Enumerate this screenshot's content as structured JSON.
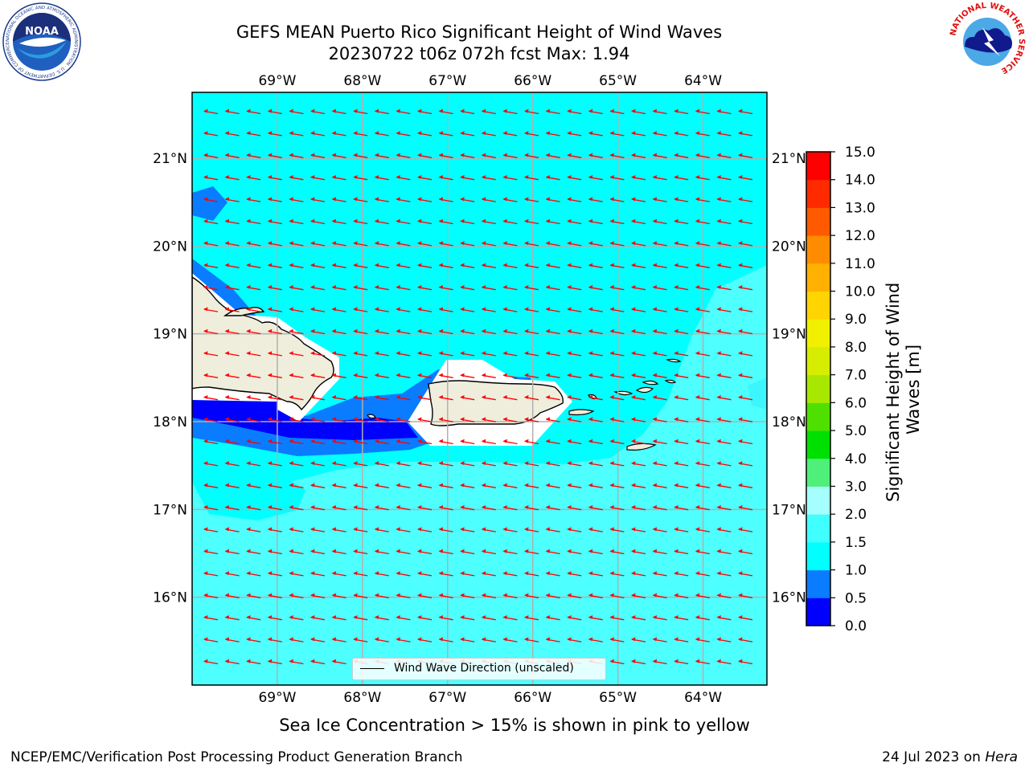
{
  "title": {
    "line1": "GEFS MEAN Puerto Rico Significant Height of Wind Waves",
    "line2": "20230722 t06z 072h fcst   Max: 1.94"
  },
  "axes": {
    "lon_labels": [
      "69°W",
      "68°W",
      "67°W",
      "66°W",
      "65°W",
      "64°W"
    ],
    "lon_values": [
      -69,
      -68,
      -67,
      -66,
      -65,
      -64
    ],
    "lat_labels": [
      "21°N",
      "20°N",
      "19°N",
      "18°N",
      "17°N",
      "16°N"
    ],
    "lat_values": [
      21,
      20,
      19,
      18,
      17,
      16
    ],
    "lon_range": [
      -70.0,
      -63.25
    ],
    "lat_range": [
      15.0,
      21.75
    ],
    "grid": true
  },
  "colorbar": {
    "label": "Significant Height of Wind Waves [m]",
    "tick_labels": [
      "15.0",
      "14.0",
      "13.0",
      "12.0",
      "11.0",
      "10.0",
      "9.0",
      "8.0",
      "7.0",
      "6.0",
      "5.0",
      "4.0",
      "3.0",
      "2.0",
      "1.5",
      "1.0",
      "0.5",
      "0.0"
    ],
    "bins": [
      0.0,
      0.5,
      1.0,
      1.5,
      2.0,
      3.0,
      4.0,
      5.0,
      6.0,
      7.0,
      8.0,
      9.0,
      10.0,
      11.0,
      12.0,
      13.0,
      14.0,
      15.0
    ],
    "colors": [
      "#0000ff",
      "#0a7cff",
      "#00ffff",
      "#40ffff",
      "#a6ffff",
      "#4ff07a",
      "#00e000",
      "#50e000",
      "#a8e800",
      "#d6ec00",
      "#f0f000",
      "#ffd400",
      "#ffb000",
      "#ff8c00",
      "#ff5a00",
      "#ff2a00",
      "#ff0000"
    ]
  },
  "legend": {
    "label": "Wind Wave Direction (unscaled)"
  },
  "notes": {
    "sea_ice": "Sea Ice Concentration > 15% is shown in pink to yellow"
  },
  "footer": {
    "left": "NCEP/EMC/Verification Post Processing Product Generation Branch",
    "date": "24 Jul 2023 on",
    "machine": "Hera"
  },
  "logos": {
    "noaa_text": "NOAA",
    "noaa_ring": "NATIONAL OCEANIC AND ATMOSPHERIC ADMINISTRATION · U.S. DEPARTMENT OF COMMERCE",
    "nws_ring": "NATIONAL WEATHER SERVICE"
  },
  "colors": {
    "land": "#efeedd",
    "coast": "#000000",
    "arrow": "#ff0000",
    "grid": "#b0b0b0",
    "mask": "#ffffff"
  }
}
